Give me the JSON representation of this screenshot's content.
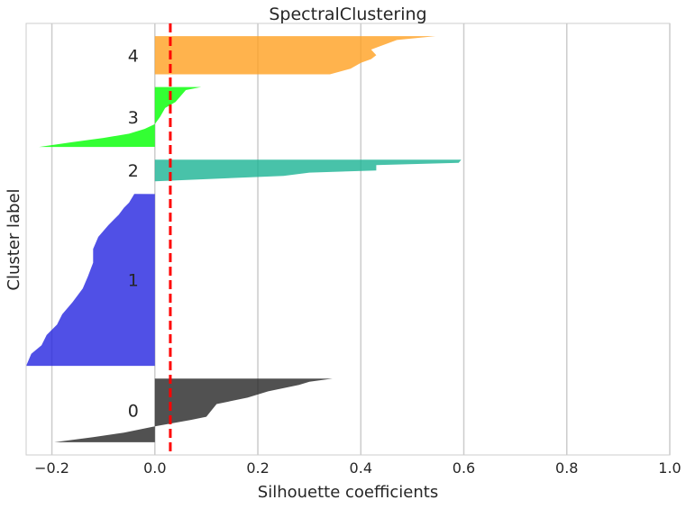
{
  "chart_data": {
    "type": "silhouette",
    "title": "SpectralClustering",
    "xlabel": "Silhouette coefficients",
    "ylabel": "Cluster label",
    "xlim": [
      -0.25,
      1.0
    ],
    "x_ticks": [
      -0.2,
      0.0,
      0.2,
      0.4,
      0.6,
      0.8,
      1.0
    ],
    "x_tick_labels": [
      "−0.2",
      "0.0",
      "0.2",
      "0.4",
      "0.6",
      "0.8",
      "1.0"
    ],
    "grid": "vertical",
    "average_silhouette": 0.03,
    "average_line_color": "#ff0000",
    "clusters": [
      {
        "label": "0",
        "color": "#262626",
        "size": 50,
        "profile": [
          [
            0.0,
            0.345
          ],
          [
            0.05,
            0.3
          ],
          [
            0.1,
            0.28
          ],
          [
            0.2,
            0.22
          ],
          [
            0.3,
            0.18
          ],
          [
            0.4,
            0.12
          ],
          [
            0.5,
            0.11
          ],
          [
            0.6,
            0.1
          ],
          [
            0.65,
            0.07
          ],
          [
            0.75,
            0.0
          ],
          [
            0.85,
            -0.06
          ],
          [
            0.92,
            -0.12
          ],
          [
            1.0,
            -0.195
          ]
        ]
      },
      {
        "label": "1",
        "color": "#2424e0",
        "size": 135,
        "profile": [
          [
            0.0,
            -0.04
          ],
          [
            0.05,
            -0.05
          ],
          [
            0.08,
            -0.06
          ],
          [
            0.12,
            -0.07
          ],
          [
            0.18,
            -0.09
          ],
          [
            0.25,
            -0.11
          ],
          [
            0.32,
            -0.12
          ],
          [
            0.4,
            -0.12
          ],
          [
            0.48,
            -0.13
          ],
          [
            0.55,
            -0.14
          ],
          [
            0.63,
            -0.16
          ],
          [
            0.7,
            -0.18
          ],
          [
            0.76,
            -0.19
          ],
          [
            0.82,
            -0.21
          ],
          [
            0.88,
            -0.22
          ],
          [
            0.93,
            -0.24
          ],
          [
            1.0,
            -0.25
          ]
        ]
      },
      {
        "label": "2",
        "color": "#1ab394",
        "size": 17,
        "profile": [
          [
            0.0,
            0.595
          ],
          [
            0.15,
            0.59
          ],
          [
            0.25,
            0.43
          ],
          [
            0.5,
            0.43
          ],
          [
            0.6,
            0.3
          ],
          [
            0.75,
            0.25
          ],
          [
            1.0,
            0.0
          ]
        ]
      },
      {
        "label": "3",
        "color": "#00ff00",
        "size": 47,
        "profile": [
          [
            0.0,
            0.09
          ],
          [
            0.05,
            0.06
          ],
          [
            0.15,
            0.05
          ],
          [
            0.25,
            0.04
          ],
          [
            0.35,
            0.02
          ],
          [
            0.5,
            0.01
          ],
          [
            0.62,
            0.0
          ],
          [
            0.7,
            -0.02
          ],
          [
            0.78,
            -0.05
          ],
          [
            0.85,
            -0.1
          ],
          [
            0.92,
            -0.16
          ],
          [
            1.0,
            -0.225
          ]
        ]
      },
      {
        "label": "4",
        "color": "#ffa020",
        "size": 30,
        "profile": [
          [
            0.0,
            0.545
          ],
          [
            0.1,
            0.47
          ],
          [
            0.25,
            0.44
          ],
          [
            0.35,
            0.42
          ],
          [
            0.5,
            0.43
          ],
          [
            0.6,
            0.42
          ],
          [
            0.7,
            0.4
          ],
          [
            0.85,
            0.38
          ],
          [
            1.0,
            0.34
          ]
        ]
      }
    ]
  }
}
